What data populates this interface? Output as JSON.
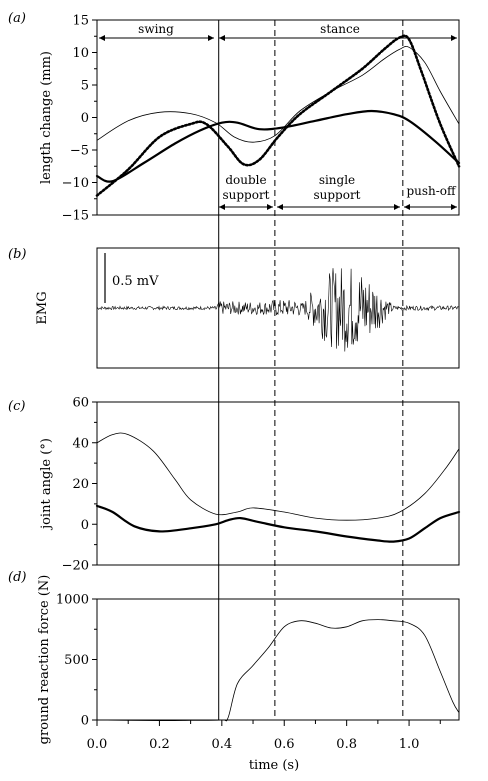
{
  "chart_data": [
    {
      "panel": "a",
      "panel_label": "(a)",
      "type": "line",
      "ylabel": "length change (mm)",
      "ylim": [
        -15,
        15
      ],
      "xlim": [
        0,
        1.16
      ],
      "yticks": [
        15,
        10,
        5,
        0,
        -5,
        -10,
        -15
      ],
      "phase_labels": {
        "swing": "swing",
        "stance": "stance",
        "double": [
          "double",
          "support"
        ],
        "single": [
          "single",
          "support"
        ],
        "push": "push-off"
      },
      "series": [
        {
          "style": "thin",
          "points": [
            [
              0,
              -3.5
            ],
            [
              0.1,
              -0.5
            ],
            [
              0.2,
              0.8
            ],
            [
              0.3,
              0.6
            ],
            [
              0.38,
              -0.8
            ],
            [
              0.44,
              -3.0
            ],
            [
              0.5,
              -3.8
            ],
            [
              0.57,
              -2.8
            ],
            [
              0.65,
              1.0
            ],
            [
              0.75,
              4.0
            ],
            [
              0.85,
              6.5
            ],
            [
              0.92,
              9.0
            ],
            [
              0.97,
              10.5
            ],
            [
              1.0,
              10.8
            ],
            [
              1.05,
              8.5
            ],
            [
              1.1,
              4.0
            ],
            [
              1.16,
              -1.0
            ]
          ]
        },
        {
          "style": "thick",
          "points": [
            [
              0,
              -9.0
            ],
            [
              0.05,
              -9.8
            ],
            [
              0.15,
              -7.0
            ],
            [
              0.25,
              -4.0
            ],
            [
              0.33,
              -2.0
            ],
            [
              0.4,
              -0.8
            ],
            [
              0.45,
              -0.8
            ],
            [
              0.52,
              -1.8
            ],
            [
              0.6,
              -1.5
            ],
            [
              0.7,
              -0.5
            ],
            [
              0.8,
              0.5
            ],
            [
              0.88,
              1.0
            ],
            [
              0.95,
              0.5
            ],
            [
              1.0,
              -0.5
            ],
            [
              1.08,
              -3.5
            ],
            [
              1.16,
              -7.0
            ]
          ]
        },
        {
          "style": "dotted",
          "points": [
            [
              0,
              -12.0
            ],
            [
              0.1,
              -8.0
            ],
            [
              0.2,
              -3.0
            ],
            [
              0.3,
              -1.0
            ],
            [
              0.35,
              -1.0
            ],
            [
              0.42,
              -4.5
            ],
            [
              0.47,
              -7.2
            ],
            [
              0.52,
              -6.5
            ],
            [
              0.58,
              -3.0
            ],
            [
              0.65,
              0.5
            ],
            [
              0.75,
              4.0
            ],
            [
              0.85,
              7.5
            ],
            [
              0.92,
              10.5
            ],
            [
              0.97,
              12.3
            ],
            [
              1.0,
              12.0
            ],
            [
              1.04,
              7.0
            ],
            [
              1.1,
              -1.0
            ],
            [
              1.16,
              -7.5
            ]
          ]
        }
      ]
    },
    {
      "panel": "b",
      "panel_label": "(b)",
      "type": "line",
      "ylabel": "EMG",
      "scale_label": "0.5 mV",
      "xlim": [
        0,
        1.16
      ],
      "ylim": [
        -1,
        1
      ],
      "bursts": [
        {
          "x": [
            0,
            0.38
          ],
          "amplitude": 0.03
        },
        {
          "x": [
            0.38,
            0.55
          ],
          "amplitude": 0.12
        },
        {
          "x": [
            0.55,
            0.65
          ],
          "amplitude": 0.15
        },
        {
          "x": [
            0.65,
            0.95
          ],
          "amplitude": 0.8
        },
        {
          "x": [
            0.95,
            1.16
          ],
          "amplitude": 0.04
        }
      ]
    },
    {
      "panel": "c",
      "panel_label": "(c)",
      "type": "line",
      "ylabel": "joint angle (°)",
      "ylim": [
        -20,
        60
      ],
      "xlim": [
        0,
        1.16
      ],
      "yticks": [
        60,
        40,
        20,
        0,
        -20
      ],
      "series": [
        {
          "style": "thin",
          "points": [
            [
              0,
              40
            ],
            [
              0.05,
              44
            ],
            [
              0.1,
              44
            ],
            [
              0.18,
              36
            ],
            [
              0.25,
              22
            ],
            [
              0.3,
              12
            ],
            [
              0.38,
              5
            ],
            [
              0.45,
              6
            ],
            [
              0.5,
              8
            ],
            [
              0.6,
              6
            ],
            [
              0.7,
              3
            ],
            [
              0.8,
              2
            ],
            [
              0.9,
              3
            ],
            [
              0.97,
              6
            ],
            [
              1.05,
              15
            ],
            [
              1.12,
              28
            ],
            [
              1.16,
              37
            ]
          ]
        },
        {
          "style": "thick",
          "points": [
            [
              0,
              9
            ],
            [
              0.05,
              6
            ],
            [
              0.12,
              -1
            ],
            [
              0.2,
              -3.5
            ],
            [
              0.3,
              -2
            ],
            [
              0.38,
              0
            ],
            [
              0.42,
              2
            ],
            [
              0.46,
              3
            ],
            [
              0.52,
              1
            ],
            [
              0.6,
              -1.5
            ],
            [
              0.7,
              -3.5
            ],
            [
              0.8,
              -6
            ],
            [
              0.9,
              -8
            ],
            [
              0.95,
              -8.5
            ],
            [
              1.0,
              -7
            ],
            [
              1.05,
              -2
            ],
            [
              1.1,
              3
            ],
            [
              1.16,
              6
            ]
          ]
        }
      ]
    },
    {
      "panel": "d",
      "panel_label": "(d)",
      "type": "line",
      "ylabel": "ground reaction force (N)",
      "xlabel": "time (s)",
      "ylim": [
        0,
        1000
      ],
      "xlim": [
        0,
        1.16
      ],
      "yticks": [
        1000,
        500,
        0
      ],
      "xticks": [
        "0.0",
        "0.2",
        "0.4",
        "0.6",
        "0.8",
        "1.0"
      ],
      "xtick_values": [
        0.0,
        0.2,
        0.4,
        0.6,
        0.8,
        1.0
      ],
      "series": [
        {
          "style": "thin",
          "points": [
            [
              0,
              0
            ],
            [
              0.2,
              -5
            ],
            [
              0.3,
              -3
            ],
            [
              0.4,
              0
            ],
            [
              0.42,
              20
            ],
            [
              0.45,
              300
            ],
            [
              0.5,
              450
            ],
            [
              0.55,
              600
            ],
            [
              0.6,
              770
            ],
            [
              0.65,
              820
            ],
            [
              0.7,
              800
            ],
            [
              0.75,
              760
            ],
            [
              0.8,
              770
            ],
            [
              0.85,
              820
            ],
            [
              0.9,
              830
            ],
            [
              0.95,
              820
            ],
            [
              1.0,
              800
            ],
            [
              1.05,
              700
            ],
            [
              1.1,
              400
            ],
            [
              1.14,
              150
            ],
            [
              1.16,
              60
            ]
          ]
        }
      ]
    }
  ],
  "phase_lines": {
    "solid": 0.39,
    "dashed": [
      0.57,
      0.98
    ]
  }
}
